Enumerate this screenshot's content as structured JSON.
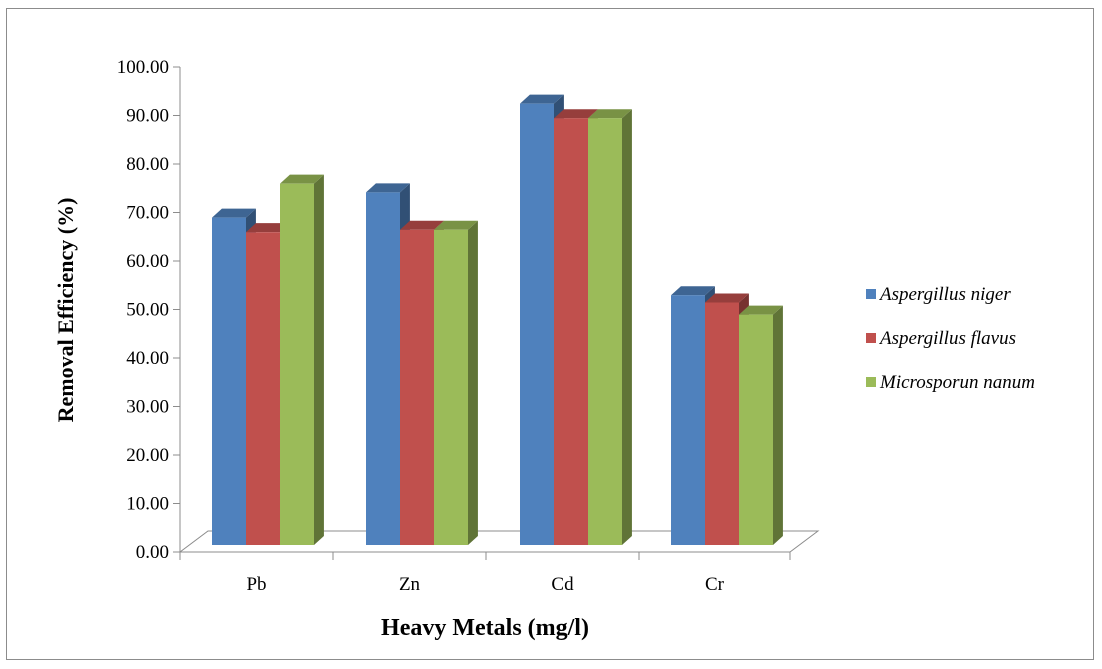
{
  "chart_data": {
    "type": "bar",
    "style": "3d-clustered-column",
    "title": "",
    "xlabel": "Heavy Metals (mg/l)",
    "ylabel": "Removal Efficiency (%)",
    "categories": [
      "Pb",
      "Zn",
      "Cd",
      "Cr"
    ],
    "ylim": [
      0,
      100
    ],
    "yticks": [
      "0.00",
      "10.00",
      "20.00",
      "30.00",
      "40.00",
      "50.00",
      "60.00",
      "70.00",
      "80.00",
      "90.00",
      "100.00"
    ],
    "series": [
      {
        "name": "Aspergillus niger",
        "values": [
          67.5,
          72.7,
          91.0,
          51.5
        ],
        "color": "#4f81bd"
      },
      {
        "name": "Aspergillus flavus",
        "values": [
          64.5,
          65.0,
          88.0,
          50.0
        ],
        "color": "#c0504d"
      },
      {
        "name": "Microsporun nanum",
        "values": [
          74.5,
          65.0,
          88.0,
          47.5
        ],
        "color": "#9bbb59"
      }
    ],
    "legend_position": "right",
    "grid": false
  }
}
